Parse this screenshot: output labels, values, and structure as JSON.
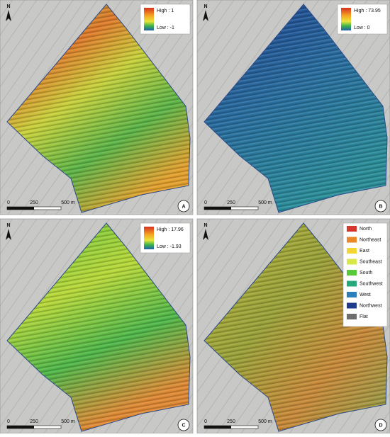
{
  "panels": [
    {
      "label": "A",
      "north": "N",
      "scale": [
        "0",
        "250",
        "500 m"
      ],
      "legend": {
        "high": "High : 1",
        "low": "Low : -1"
      }
    },
    {
      "label": "B",
      "north": "N",
      "scale": [
        "0",
        "250",
        "500 m"
      ],
      "legend": {
        "high": "High : 73.95",
        "low": "Low : 0"
      }
    },
    {
      "label": "C",
      "north": "N",
      "scale": [
        "0",
        "250",
        "500 m"
      ],
      "legend": {
        "high": "High : 17.96",
        "low": "Low : -1.93"
      }
    },
    {
      "label": "D",
      "north": "N",
      "scale": [
        "0",
        "250",
        "500 m"
      ],
      "legend": {
        "classes": [
          {
            "name": "North",
            "color": "#d2382c"
          },
          {
            "name": "Northeast",
            "color": "#e8882a"
          },
          {
            "name": "East",
            "color": "#f3d531"
          },
          {
            "name": "Southeast",
            "color": "#d8e84a"
          },
          {
            "name": "South",
            "color": "#58c93a"
          },
          {
            "name": "Southwest",
            "color": "#27a87a"
          },
          {
            "name": "West",
            "color": "#2a7fb8"
          },
          {
            "name": "Northwest",
            "color": "#1d3a8c"
          },
          {
            "name": "Flat",
            "color": "#6d6d6d"
          }
        ]
      }
    }
  ]
}
